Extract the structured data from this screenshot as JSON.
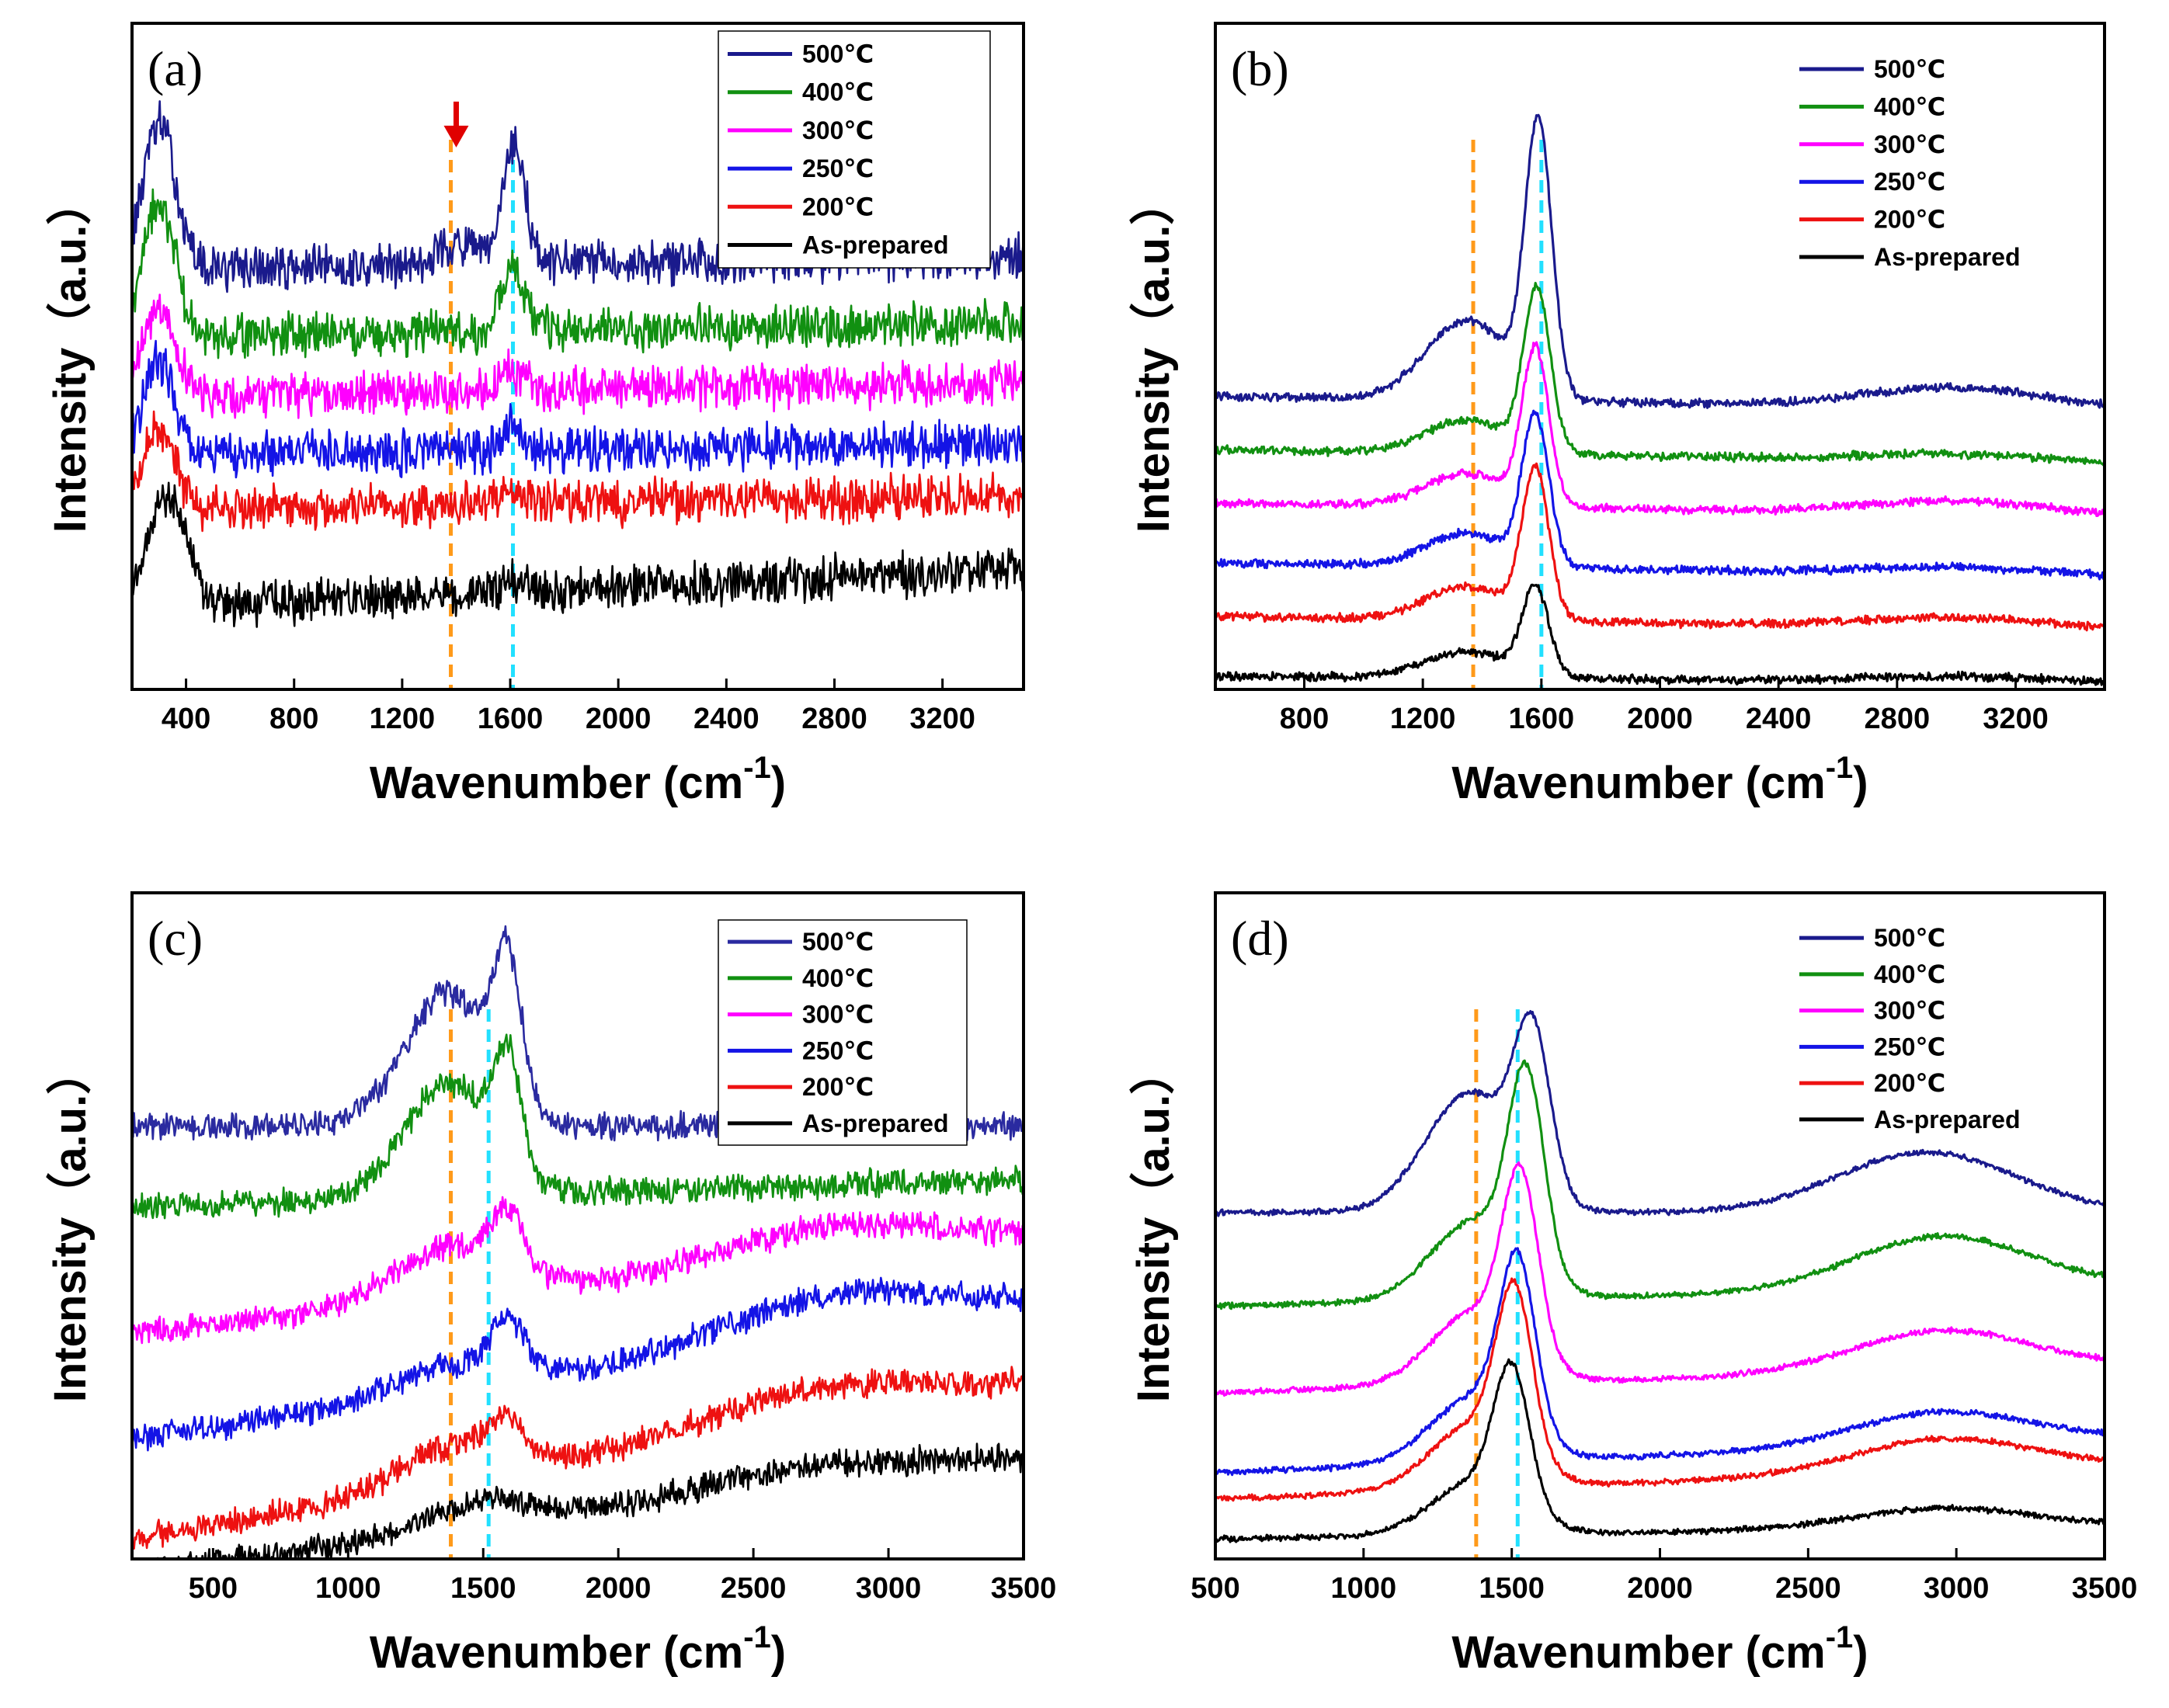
{
  "chart_data": [
    {
      "id": "a",
      "type": "line",
      "panel_label": "(a)",
      "xlabel": "Wavenumber (cm",
      "xlabel_sup": "-1",
      "xlabel_close": ")",
      "ylabel": "Intensity（a.u.）",
      "xlim": [
        200,
        3500
      ],
      "ylim": [
        0,
        100
      ],
      "xticks": [
        400,
        800,
        1200,
        1600,
        2000,
        2400,
        2800,
        3200
      ],
      "noise": 2.6,
      "ref_lines": [
        {
          "x": 1380,
          "color": "#ff9a1a"
        },
        {
          "x": 1610,
          "color": "#22e0ff"
        }
      ],
      "annotation": {
        "x": 1400,
        "y": 72,
        "glyph": "➜",
        "color": "#e00000"
      },
      "legend_position": "top-right",
      "series": [
        {
          "name": "500℃",
          "color": "#1a1a8c",
          "baseline": 63,
          "slope": 2,
          "peaks": [
            [
              300,
              22,
              60
            ],
            [
              1400,
              3,
              80
            ],
            [
              1615,
              18,
              40
            ]
          ]
        },
        {
          "name": "400℃",
          "color": "#119011",
          "baseline": 53,
          "slope": 2,
          "peaks": [
            [
              300,
              20,
              60
            ],
            [
              1610,
              10,
              40
            ]
          ]
        },
        {
          "name": "300℃",
          "color": "#ff00ff",
          "baseline": 44,
          "slope": 2,
          "peaks": [
            [
              300,
              14,
              60
            ],
            [
              1610,
              3,
              40
            ]
          ]
        },
        {
          "name": "250℃",
          "color": "#1414e6",
          "baseline": 35,
          "slope": 2,
          "peaks": [
            [
              300,
              14,
              60
            ],
            [
              1610,
              4,
              40
            ]
          ]
        },
        {
          "name": "200℃",
          "color": "#ee1111",
          "baseline": 27,
          "slope": 2,
          "peaks": [
            [
              300,
              12,
              60
            ],
            [
              1610,
              2,
              40
            ]
          ]
        },
        {
          "name": "As-prepared",
          "color": "#000000",
          "baseline": 12,
          "slope": 6,
          "peaks": [
            [
              330,
              17,
              70
            ],
            [
              1610,
              2,
              40
            ]
          ]
        }
      ]
    },
    {
      "id": "b",
      "type": "line",
      "panel_label": "(b)",
      "xlabel": "Wavenumber (cm",
      "xlabel_sup": "-1",
      "xlabel_close": ")",
      "ylabel": "Intensity（a.u.）",
      "xlim": [
        500,
        3500
      ],
      "ylim": [
        0,
        100
      ],
      "xticks": [
        800,
        1200,
        1600,
        2000,
        2400,
        2800,
        3200
      ],
      "noise": 0.5,
      "ref_lines": [
        {
          "x": 1370,
          "color": "#ff9a1a"
        },
        {
          "x": 1600,
          "color": "#22e0ff"
        }
      ],
      "legend_position": "top-right",
      "series": [
        {
          "name": "500℃",
          "color": "#1a1a8c",
          "baseline": 44,
          "slope": -2,
          "peaks": [
            [
              1350,
              12,
              140
            ],
            [
              1590,
              40,
              45
            ],
            [
              3000,
              3,
              300
            ]
          ]
        },
        {
          "name": "400℃",
          "color": "#119011",
          "baseline": 36,
          "slope": -2,
          "peaks": [
            [
              1350,
              5,
              140
            ],
            [
              1585,
              24,
              45
            ],
            [
              3000,
              1,
              300
            ]
          ]
        },
        {
          "name": "300℃",
          "color": "#ff00ff",
          "baseline": 28,
          "slope": -2,
          "peaks": [
            [
              1350,
              5,
              140
            ],
            [
              1580,
              23,
              45
            ],
            [
              3000,
              2,
              300
            ]
          ]
        },
        {
          "name": "250℃",
          "color": "#1414e6",
          "baseline": 19,
          "slope": -2,
          "peaks": [
            [
              1350,
              5,
              140
            ],
            [
              1580,
              22,
              45
            ],
            [
              3000,
              1,
              300
            ]
          ]
        },
        {
          "name": "200℃",
          "color": "#ee1111",
          "baseline": 11,
          "slope": -2,
          "peaks": [
            [
              1350,
              5,
              140
            ],
            [
              1580,
              22,
              45
            ],
            [
              3000,
              1.5,
              300
            ]
          ]
        },
        {
          "name": "As-prepared",
          "color": "#000000",
          "baseline": 2,
          "slope": -1,
          "peaks": [
            [
              1350,
              4,
              140
            ],
            [
              1580,
              13,
              45
            ],
            [
              3000,
              0.8,
              300
            ]
          ]
        }
      ]
    },
    {
      "id": "c",
      "type": "line",
      "panel_label": "(c)",
      "xlabel": "Wavenumber (cm",
      "xlabel_sup": "-1",
      "xlabel_close": ")",
      "ylabel": "Intensity（a.u.）",
      "xlim": [
        200,
        3500
      ],
      "ylim": [
        0,
        100
      ],
      "xticks": [
        500,
        1000,
        1500,
        2000,
        2500,
        3000,
        3500
      ],
      "noise": 1.6,
      "ref_lines": [
        {
          "x": 1380,
          "color": "#ff9a1a"
        },
        {
          "x": 1520,
          "color": "#22e0ff"
        }
      ],
      "legend_position": "top-right",
      "series": [
        {
          "name": "500℃",
          "color": "#2a2aa0",
          "baseline": 65,
          "slope": 0,
          "peaks": [
            [
              1370,
              20,
              160
            ],
            [
              1590,
              20,
              50
            ]
          ]
        },
        {
          "name": "400℃",
          "color": "#119011",
          "baseline": 53,
          "slope": 4,
          "peaks": [
            [
              1370,
              17,
              160
            ],
            [
              1590,
              16,
              50
            ]
          ]
        },
        {
          "name": "300℃",
          "color": "#ff00ff",
          "baseline": 34,
          "slope": 14,
          "peaks": [
            [
              1370,
              8,
              200
            ],
            [
              1590,
              9,
              60
            ],
            [
              2800,
              5,
              400
            ]
          ]
        },
        {
          "name": "250℃",
          "color": "#1414e6",
          "baseline": 18,
          "slope": 20,
          "peaks": [
            [
              1370,
              4,
              200
            ],
            [
              1590,
              8,
              60
            ],
            [
              2800,
              6,
              400
            ]
          ]
        },
        {
          "name": "200℃",
          "color": "#ee1111",
          "baseline": 3,
          "slope": 23,
          "peaks": [
            [
              1400,
              6,
              200
            ],
            [
              1590,
              5,
              60
            ],
            [
              2700,
              5,
              400
            ]
          ]
        },
        {
          "name": "As-prepared",
          "color": "#000000",
          "baseline": -2,
          "slope": 17,
          "peaks": [
            [
              1500,
              4,
              200
            ],
            [
              2700,
              3,
              400
            ]
          ]
        }
      ]
    },
    {
      "id": "d",
      "type": "line",
      "panel_label": "(d)",
      "xlabel": "Wavenumber (cm",
      "xlabel_sup": "-1",
      "xlabel_close": ")",
      "ylabel": "Intensity（a.u.）",
      "xlim": [
        500,
        3500
      ],
      "ylim": [
        0,
        100
      ],
      "xticks": [
        500,
        1000,
        1500,
        2000,
        2500,
        3000,
        3500
      ],
      "noise": 0.35,
      "ref_lines": [
        {
          "x": 1380,
          "color": "#ff9a1a"
        },
        {
          "x": 1520,
          "color": "#22e0ff"
        }
      ],
      "legend_position": "top-right",
      "series": [
        {
          "name": "500℃",
          "color": "#1a1a8c",
          "baseline": 52,
          "slope": 0,
          "peaks": [
            [
              1360,
              18,
              150
            ],
            [
              1570,
              23,
              60
            ],
            [
              2900,
              9,
              300
            ]
          ]
        },
        {
          "name": "400℃",
          "color": "#119011",
          "baseline": 38,
          "slope": 3,
          "peaks": [
            [
              1380,
              12,
              150
            ],
            [
              1550,
              29,
              60
            ],
            [
              2950,
              8,
              300
            ]
          ]
        },
        {
          "name": "300℃",
          "color": "#ff00ff",
          "baseline": 25,
          "slope": 4,
          "peaks": [
            [
              1380,
              11,
              150
            ],
            [
              1530,
              26,
              60
            ],
            [
              2950,
              6,
              300
            ]
          ]
        },
        {
          "name": "250℃",
          "color": "#1414e6",
          "baseline": 13,
          "slope": 5,
          "peaks": [
            [
              1380,
              10,
              150
            ],
            [
              1520,
              25,
              60
            ],
            [
              2950,
              5,
              300
            ]
          ]
        },
        {
          "name": "200℃",
          "color": "#ee1111",
          "baseline": 9,
          "slope": 5,
          "peaks": [
            [
              1380,
              10,
              150
            ],
            [
              1510,
              24,
              60
            ],
            [
              2950,
              5,
              300
            ]
          ]
        },
        {
          "name": "As-prepared",
          "color": "#000000",
          "baseline": 3,
          "slope": 2,
          "peaks": [
            [
              1380,
              8,
              150
            ],
            [
              1500,
              20,
              60
            ],
            [
              2950,
              3,
              300
            ]
          ]
        }
      ]
    }
  ]
}
